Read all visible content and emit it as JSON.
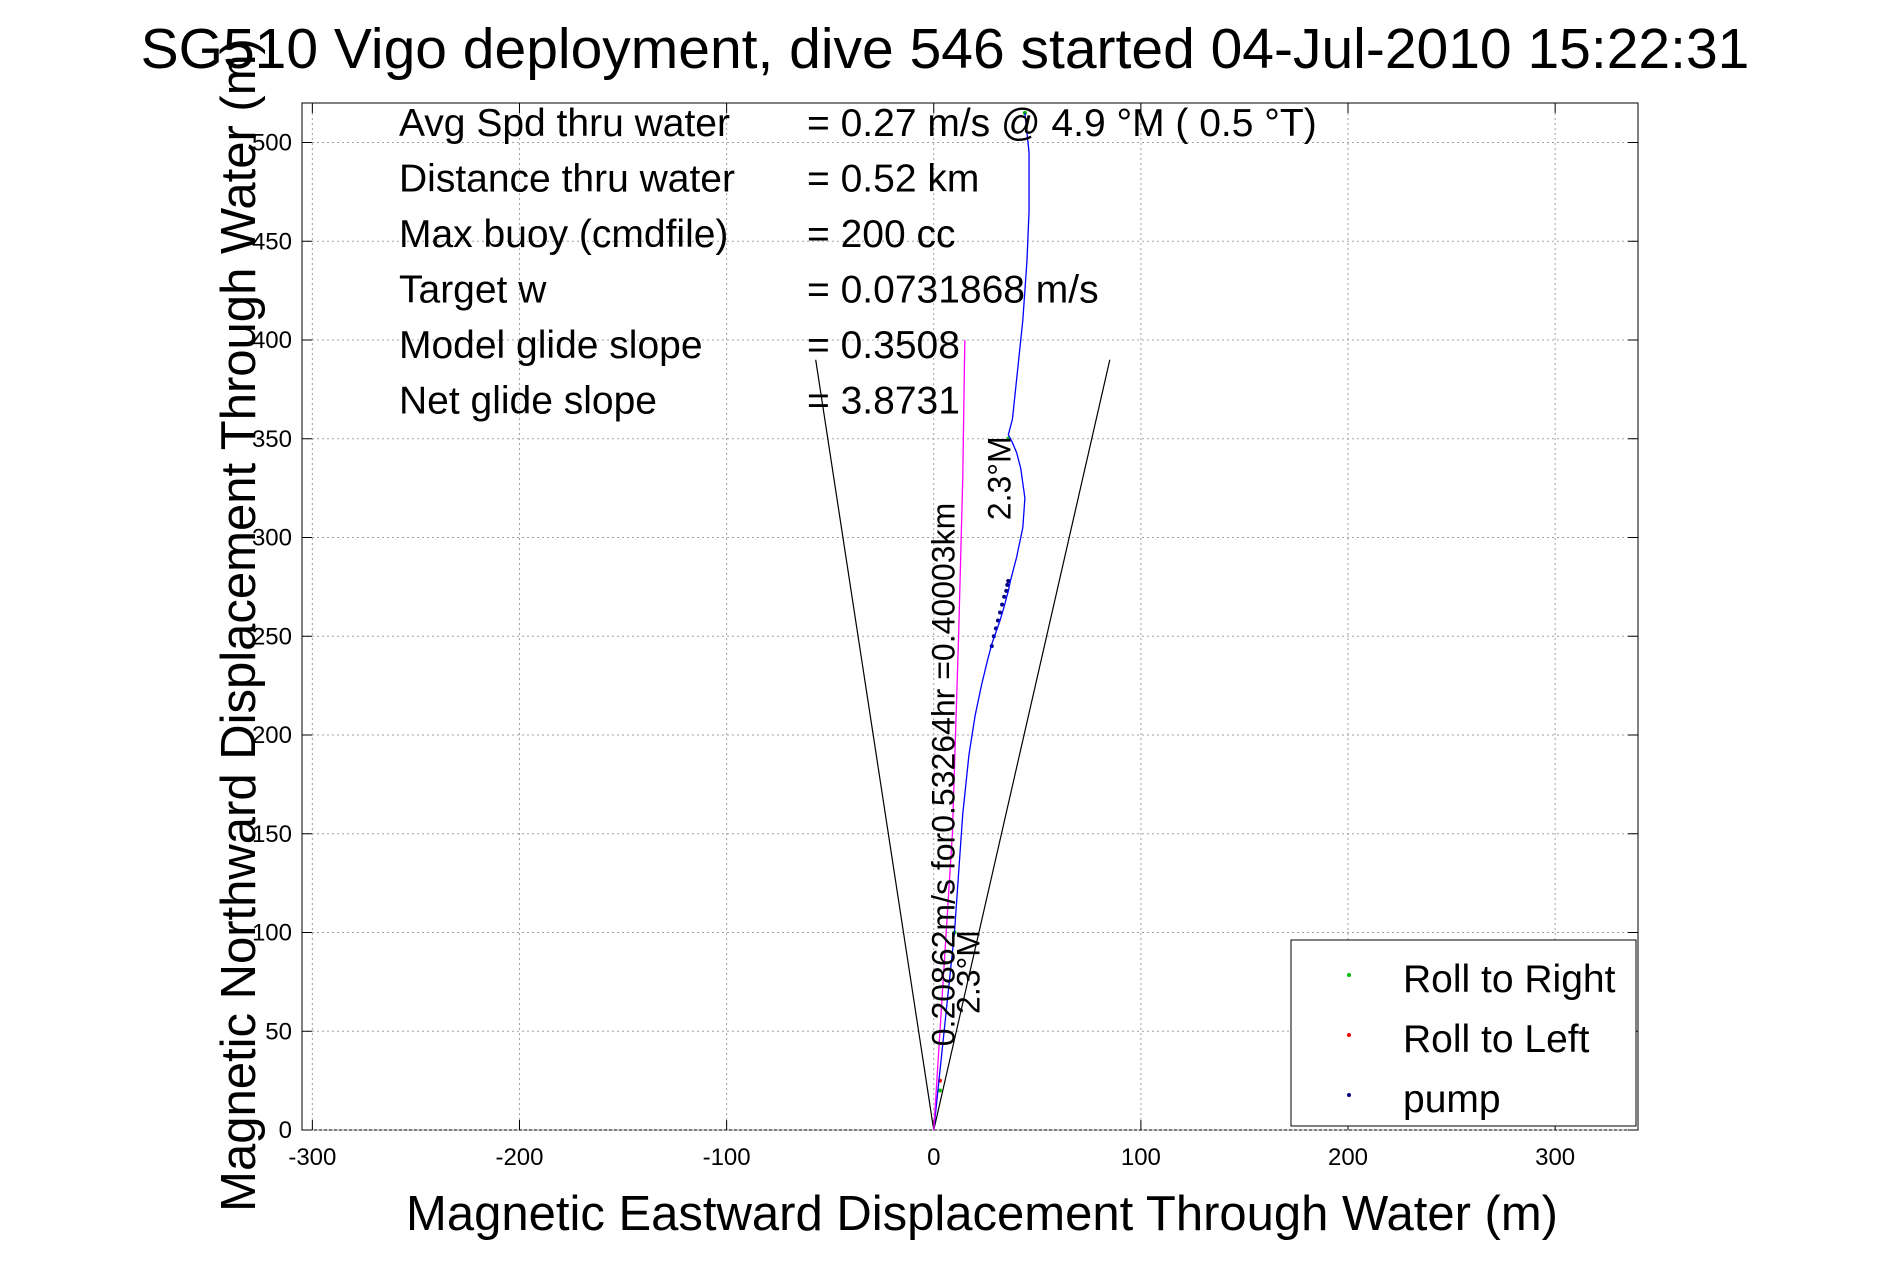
{
  "chart_data": {
    "type": "line",
    "title": "SG510 Vigo deployment, dive 546 started 04-Jul-2010 15:22:31",
    "xlabel": "Magnetic Eastward Displacement Through Water (m)",
    "ylabel": "Magnetic Northward Displacement Through Water (m)",
    "xlim": [
      -305,
      340
    ],
    "ylim": [
      0,
      520
    ],
    "xticks": [
      -300,
      -200,
      -100,
      0,
      100,
      200,
      300
    ],
    "yticks": [
      0,
      50,
      100,
      150,
      200,
      250,
      300,
      350,
      400,
      450,
      500
    ],
    "grid": true,
    "info_lines": [
      {
        "label": "Avg Spd thru water",
        "value": "=  0.27 m/s @   4.9 °M (  0.5 °T)"
      },
      {
        "label": "Distance thru water",
        "value": "=  0.52 km"
      },
      {
        "label": "Max buoy (cmdfile)",
        "value": "= 200 cc"
      },
      {
        "label": "Target w",
        "value": "= 0.0731868 m/s"
      },
      {
        "label": "Model glide slope",
        "value": "= 0.3508"
      },
      {
        "label": "Net glide slope",
        "value": "= 3.8731"
      }
    ],
    "current_labels": [
      {
        "text": "0.20862m/s for0.53264hr =0.40003km",
        "x": 10,
        "y": 180,
        "angle_deg": -90
      },
      {
        "text": "2.3°M",
        "x": 22,
        "y": 80,
        "angle_deg": -90
      },
      {
        "text": "2.3°M",
        "x": 37,
        "y": 330,
        "angle_deg": -90
      }
    ],
    "glide_cone": [
      {
        "x": [
          -57,
          0,
          85
        ],
        "y": [
          390,
          0,
          390
        ]
      }
    ],
    "series": [
      {
        "name": "Roll to Right",
        "color": "#00c000",
        "marker": "dot",
        "x": [
          10,
          44,
          36,
          3
        ],
        "y": [
          100,
          515,
          350,
          20
        ]
      },
      {
        "name": "Roll to Left",
        "color": "#ff0000",
        "marker": "dot",
        "x": [
          36,
          3
        ],
        "y": [
          278,
          25
        ]
      },
      {
        "name": "pump",
        "color": "#000080",
        "marker": "dot",
        "x": [
          28,
          29,
          30,
          31,
          32,
          33,
          34,
          35,
          35.5,
          36
        ],
        "y": [
          245,
          250,
          254,
          258,
          262,
          266,
          270,
          273,
          276,
          278
        ]
      },
      {
        "color": "#0000ff",
        "marker": "line",
        "x": [
          0,
          2,
          4,
          7,
          10,
          12,
          14,
          17,
          20,
          23,
          26,
          28,
          30,
          32,
          34,
          36,
          37,
          40,
          43,
          44,
          42,
          40,
          38,
          36,
          38,
          40,
          43,
          45,
          46,
          46,
          46,
          45,
          44
        ],
        "y": [
          0,
          20,
          40,
          70,
          100,
          130,
          160,
          190,
          210,
          225,
          238,
          246,
          252,
          258,
          265,
          273,
          278,
          290,
          305,
          320,
          335,
          343,
          348,
          352,
          360,
          380,
          410,
          440,
          465,
          480,
          495,
          505,
          515
        ]
      },
      {
        "color": "#ff00ff",
        "marker": "line",
        "x": [
          0,
          3,
          6,
          9,
          12,
          14,
          15
        ],
        "y": [
          0,
          50,
          100,
          150,
          250,
          330,
          400
        ]
      }
    ],
    "legend": {
      "position": "bottom-right",
      "entries": [
        "Roll to Right",
        "Roll to Left",
        "pump"
      ]
    }
  }
}
